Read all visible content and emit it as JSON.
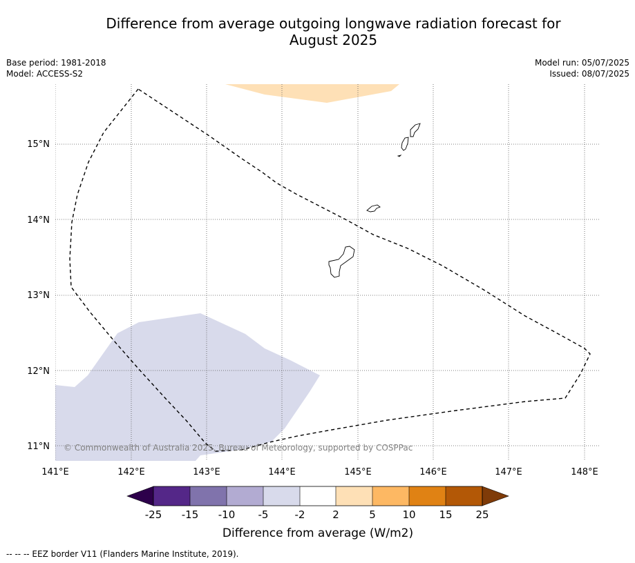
{
  "title": {
    "line1": "Difference from average outgoing longwave radiation forecast for",
    "line2": "August 2025"
  },
  "meta": {
    "base_period": "Base period: 1981-2018",
    "model": "Model: ACCESS-S2",
    "model_run": "Model run: 05/07/2025",
    "issued": "Issued: 08/07/2025"
  },
  "map": {
    "lon_labels": [
      "141°E",
      "142°E",
      "143°E",
      "144°E",
      "145°E",
      "146°E",
      "147°E",
      "148°E"
    ],
    "lat_labels": [
      "15°N",
      "14°N",
      "13°N",
      "12°N",
      "11°N"
    ],
    "copyright": "© Commonwealth of Australia 2025, Bureau of Meteorology, supported by COSPPac",
    "anomaly_regions": [
      {
        "category": "2 to 5",
        "color": "#fee0b6"
      },
      {
        "category": "-5 to -2",
        "color": "#d8daeb"
      }
    ]
  },
  "colorbar": {
    "title": "Difference from average (W/m2)",
    "tick_labels": [
      "-25",
      "-15",
      "-10",
      "-5",
      "-2",
      "2",
      "5",
      "10",
      "15",
      "25"
    ],
    "colors": {
      "under": "#2d004b",
      "bins": [
        "#542788",
        "#8073ac",
        "#b2abd2",
        "#d8daeb",
        "#ffffff",
        "#fee0b6",
        "#fdb863",
        "#e08214",
        "#b35806"
      ],
      "over": "#7f3b08"
    }
  },
  "footnote": "--  --  -- EEZ border V11 (Flanders Marine Institute, 2019)."
}
